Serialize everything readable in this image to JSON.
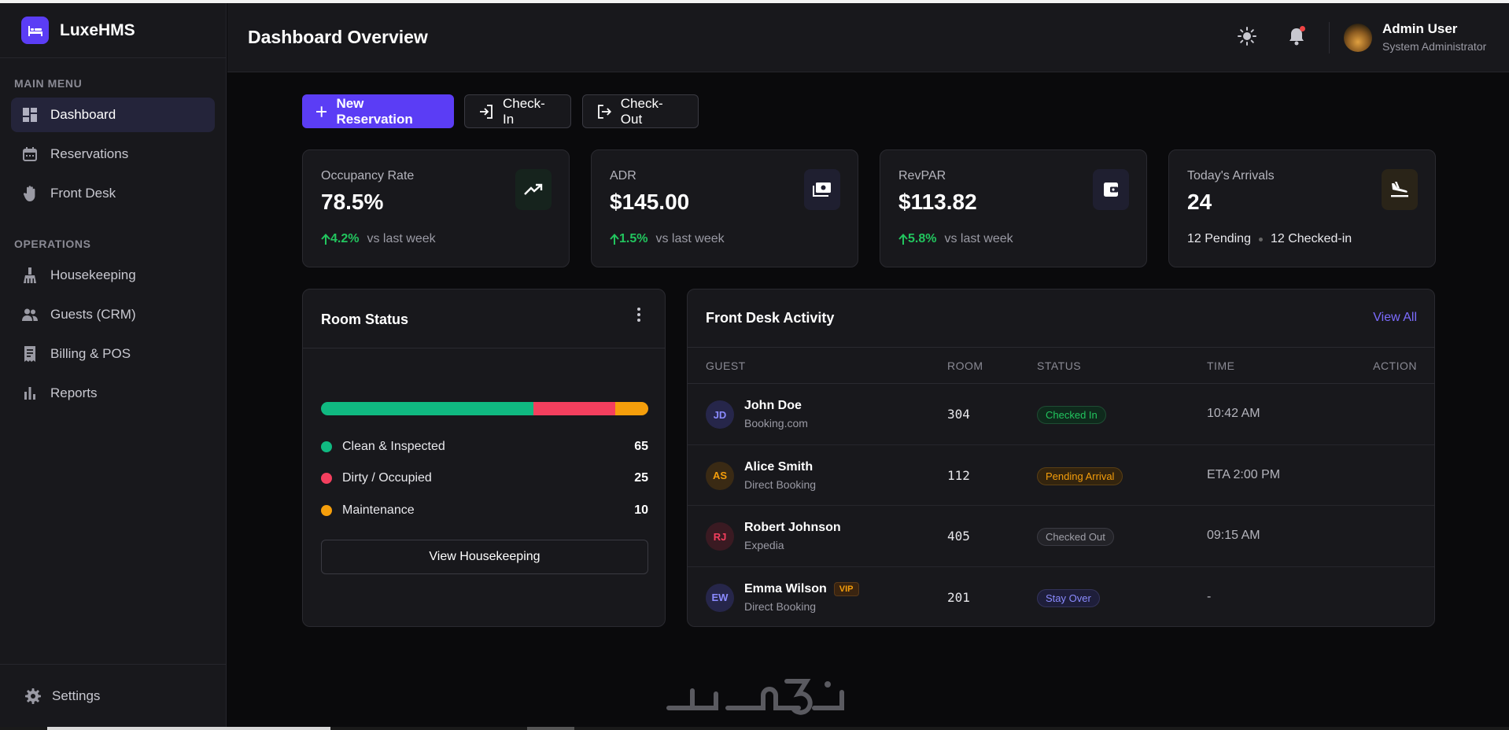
{
  "brand": {
    "name": "LuxeHMS"
  },
  "sidebar": {
    "main_label": "MAIN MENU",
    "main_items": [
      {
        "label": "Dashboard",
        "icon": "dashboard-icon",
        "active": true
      },
      {
        "label": "Reservations",
        "icon": "calendar-icon"
      },
      {
        "label": "Front Desk",
        "icon": "hand-icon"
      }
    ],
    "ops_label": "OPERATIONS",
    "ops_items": [
      {
        "label": "Housekeeping",
        "icon": "broom-icon"
      },
      {
        "label": "Guests (CRM)",
        "icon": "people-icon"
      },
      {
        "label": "Billing & POS",
        "icon": "receipt-icon"
      },
      {
        "label": "Reports",
        "icon": "bar-chart-icon"
      }
    ],
    "settings_label": "Settings"
  },
  "header": {
    "title": "Dashboard Overview",
    "user_name": "Admin User",
    "user_role": "System Administrator"
  },
  "actions": {
    "new_reservation": "New Reservation",
    "check_in": "Check-In",
    "check_out": "Check-Out"
  },
  "stats": [
    {
      "label": "Occupancy Rate",
      "value": "78.5%",
      "trend": "4.2%",
      "suffix": "vs last week",
      "icon": "trending-up-icon",
      "icon_bg": "#16231d",
      "icon_color": "#ffffff"
    },
    {
      "label": "ADR",
      "value": "$145.00",
      "trend": "1.5%",
      "suffix": "vs last week",
      "icon": "money-icon",
      "icon_bg": "#1f1f30",
      "icon_color": "#ffffff"
    },
    {
      "label": "RevPAR",
      "value": "$113.82",
      "trend": "5.8%",
      "suffix": "vs last week",
      "icon": "wallet-icon",
      "icon_bg": "#1f1f30",
      "icon_color": "#ffffff"
    },
    {
      "label": "Today's Arrivals",
      "value": "24",
      "pending": "12 Pending",
      "checked_in": "12 Checked-in",
      "icon": "plane-landing-icon",
      "icon_bg": "#2a2418",
      "icon_color": "#ffffff"
    }
  ],
  "room_status": {
    "title": "Room Status",
    "items": [
      {
        "label": "Clean & Inspected",
        "count": "65",
        "value": 65,
        "color": "#10b981"
      },
      {
        "label": "Dirty / Occupied",
        "count": "25",
        "value": 25,
        "color": "#f43f5e"
      },
      {
        "label": "Maintenance",
        "count": "10",
        "value": 10,
        "color": "#f59e0b"
      }
    ],
    "button": "View Housekeeping"
  },
  "activity": {
    "title": "Front Desk Activity",
    "view_all": "View All",
    "columns": {
      "guest": "GUEST",
      "room": "ROOM",
      "status": "STATUS",
      "time": "TIME",
      "action": "ACTION"
    },
    "rows": [
      {
        "initials": "JD",
        "name": "John Doe",
        "source": "Booking.com",
        "room": "304",
        "status": "Checked In",
        "time": "10:42 AM",
        "vip": "",
        "init_color": "#8b8bff",
        "init_bg": "#26264a",
        "status_color": "#22c55e",
        "status_bg": "#0f2a1c",
        "status_border": "#1e4d33"
      },
      {
        "initials": "AS",
        "name": "Alice Smith",
        "source": "Direct Booking",
        "room": "112",
        "status": "Pending Arrival",
        "time": "ETA 2:00 PM",
        "vip": "",
        "init_color": "#f59e0b",
        "init_bg": "#3a2a14",
        "status_color": "#f59e0b",
        "status_bg": "#33240e",
        "status_border": "#5a3f14"
      },
      {
        "initials": "RJ",
        "name": "Robert Johnson",
        "source": "Expedia",
        "room": "405",
        "status": "Checked Out",
        "time": "09:15 AM",
        "vip": "",
        "init_color": "#f43f5e",
        "init_bg": "#3a1a22",
        "status_color": "#a0a0a8",
        "status_bg": "#232328",
        "status_border": "#3a3a42"
      },
      {
        "initials": "EW",
        "name": "Emma Wilson",
        "source": "Direct Booking",
        "room": "201",
        "status": "Stay Over",
        "time": "-",
        "vip": "VIP",
        "init_color": "#8b8bff",
        "init_bg": "#26264a",
        "status_color": "#8b8bff",
        "status_bg": "#1e1e3a",
        "status_border": "#33335a"
      }
    ]
  }
}
